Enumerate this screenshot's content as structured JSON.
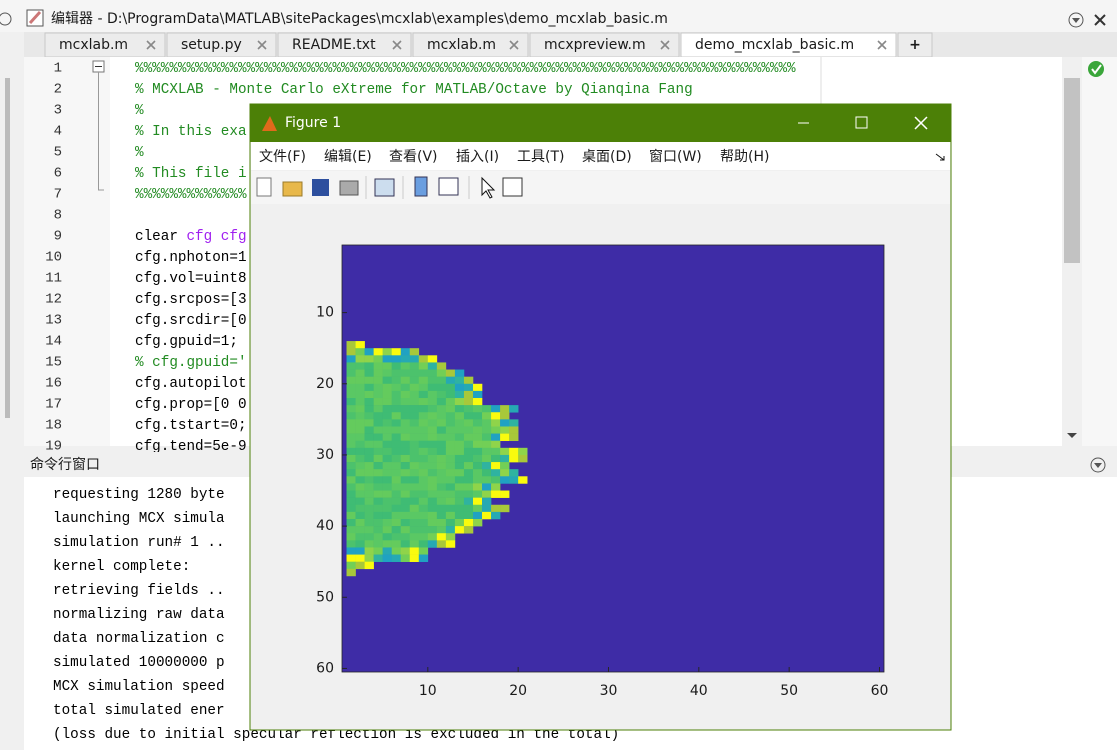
{
  "editor": {
    "title": "编辑器 - D:\\ProgramData\\MATLAB\\sitePackages\\mcxlab\\examples\\demo_mcxlab_basic.m",
    "tabs": [
      "mcxlab.m",
      "setup.py",
      "README.txt",
      "mcxlab.m",
      "mcxpreview.m",
      "demo_mcxlab_basic.m"
    ],
    "add_tab": "+",
    "line_numbers": [
      1,
      2,
      3,
      4,
      5,
      6,
      7,
      8,
      9,
      10,
      11,
      12,
      13,
      14,
      15,
      16,
      17,
      18,
      19
    ],
    "code": [
      {
        "line": 1,
        "kind": "comment",
        "text": "%%%%%%%%%%%%%%%%%%%%%%%%%%%%%%%%%%%%%%%%%%%%%%%%%%%%%%%%%%%%%%%%%%%%%%%%%%%%%"
      },
      {
        "line": 2,
        "kind": "comment",
        "text": "% MCXLAB - Monte Carlo eXtreme for MATLAB/Octave by Qianqina Fang"
      },
      {
        "line": 3,
        "kind": "comment",
        "text": "%"
      },
      {
        "line": 4,
        "kind": "comment",
        "text": "% In this exa"
      },
      {
        "line": 5,
        "kind": "comment",
        "text": "%"
      },
      {
        "line": 6,
        "kind": "comment",
        "text": "% This file i"
      },
      {
        "line": 7,
        "kind": "comment",
        "text": "%%%%%%%%%%%%%"
      },
      {
        "line": 9,
        "kind": "command",
        "text": "clear",
        "args": "cfg cfg"
      },
      {
        "line": 10,
        "kind": "code",
        "text": "cfg.nphoton=1"
      },
      {
        "line": 11,
        "kind": "code",
        "text": "cfg.vol=uint8"
      },
      {
        "line": 12,
        "kind": "code",
        "text": "cfg.srcpos=[3"
      },
      {
        "line": 13,
        "kind": "code",
        "text": "cfg.srcdir=[0"
      },
      {
        "line": 14,
        "kind": "code",
        "text": "cfg.gpuid=1;"
      },
      {
        "line": 15,
        "kind": "comment",
        "text": "% cfg.gpuid='"
      },
      {
        "line": 16,
        "kind": "code",
        "text": "cfg.autopilot"
      },
      {
        "line": 17,
        "kind": "code",
        "text": "cfg.prop=[0 0"
      },
      {
        "line": 18,
        "kind": "code",
        "text": "cfg.tstart=0;"
      },
      {
        "line": 19,
        "kind": "code",
        "text": "cfg.tend=5e-9"
      }
    ]
  },
  "command_window": {
    "title": "命令行窗口",
    "lines": [
      "requesting 1280 byte",
      "launching MCX simula",
      "simulation run# 1 ..",
      "kernel complete:",
      "retrieving fields ..",
      "normalizing raw data",
      "data normalization c",
      "simulated 10000000 p",
      "MCX simulation speed",
      "total simulated ener",
      "(loss due to initial specular reflection is excluded in the total)"
    ]
  },
  "figure": {
    "title": "Figure 1",
    "menus": [
      "文件(F)",
      "编辑(E)",
      "查看(V)",
      "插入(I)",
      "工具(T)",
      "桌面(D)",
      "窗口(W)",
      "帮助(H)"
    ],
    "axes": {
      "xticks": [
        10,
        20,
        30,
        40,
        50,
        60
      ],
      "yticks": [
        10,
        20,
        30,
        40,
        50,
        60
      ]
    }
  }
}
